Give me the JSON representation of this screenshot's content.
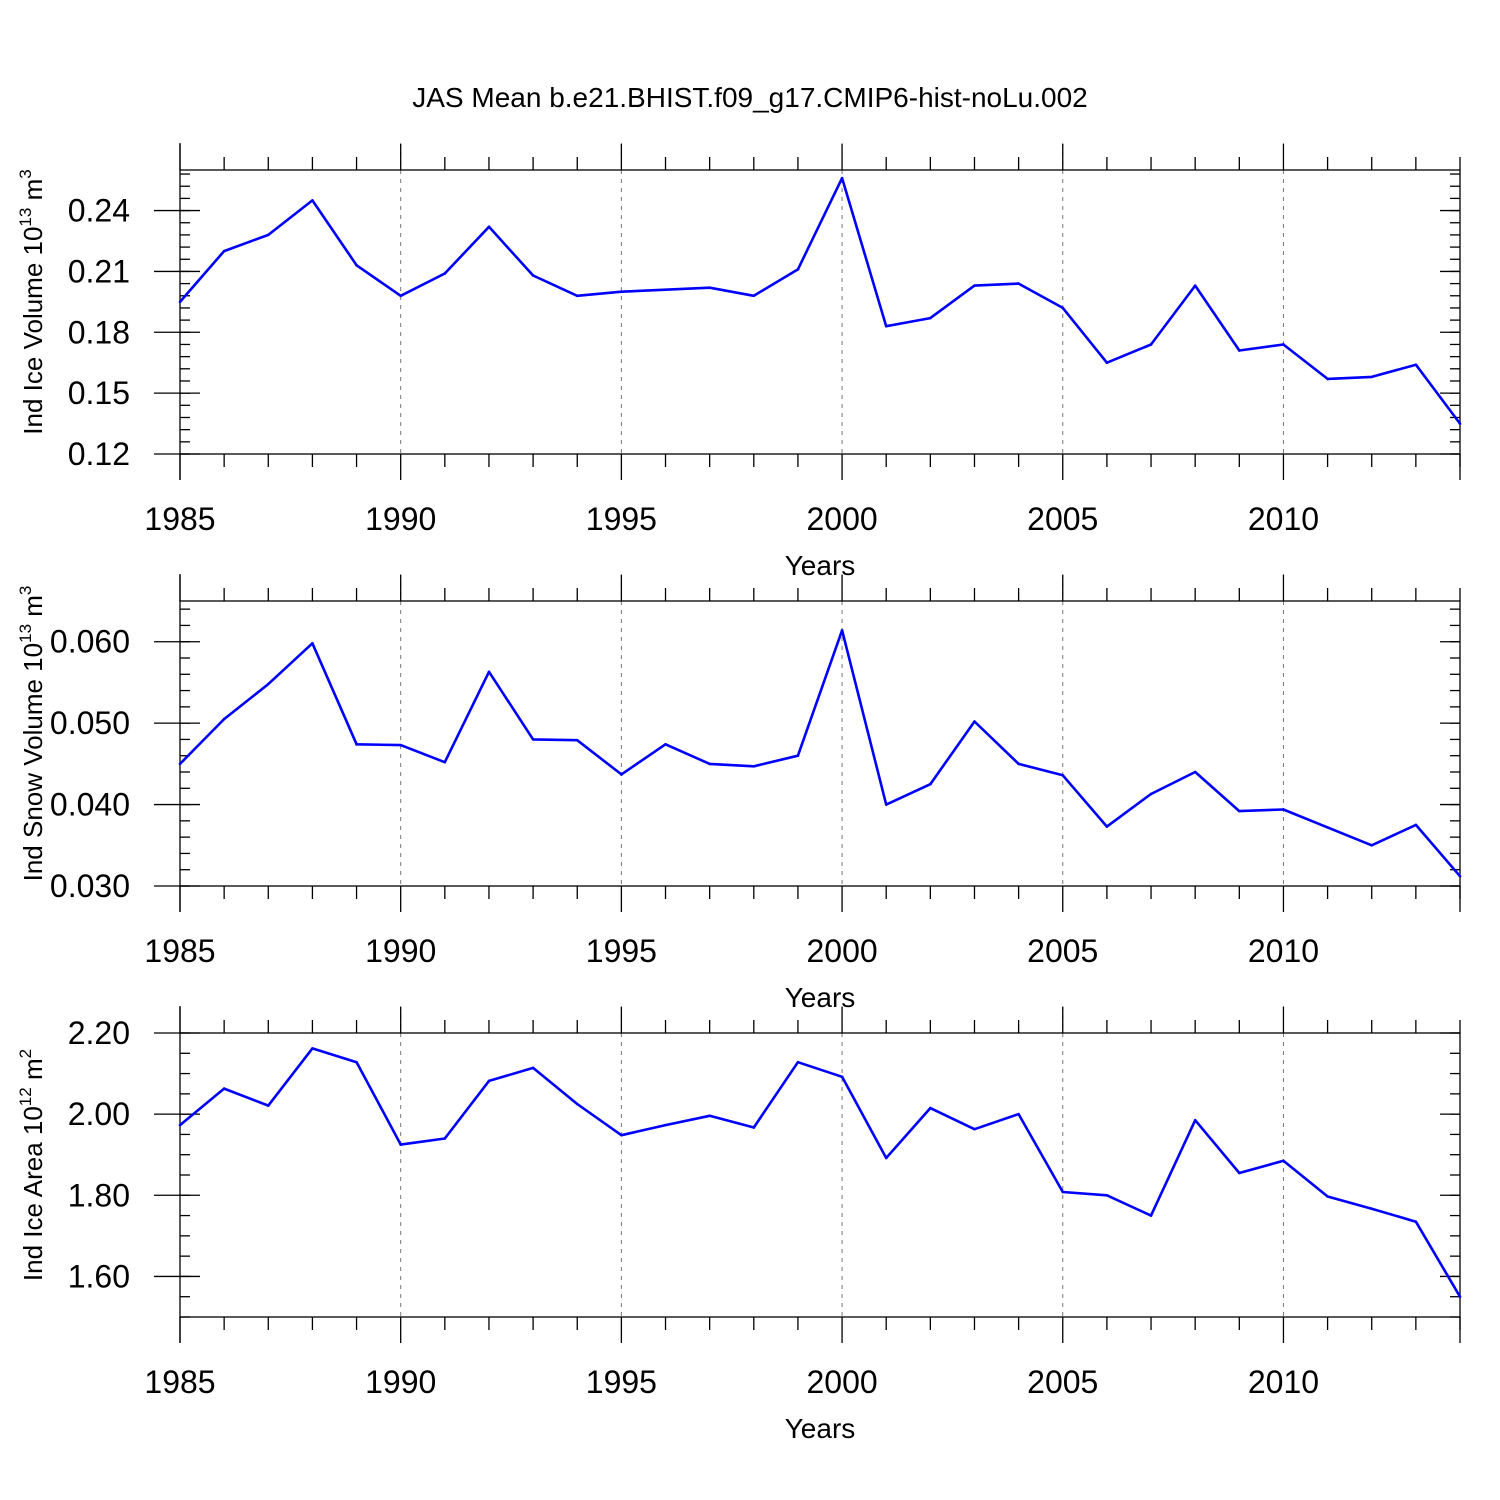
{
  "figure": {
    "title": "JAS Mean b.e21.BHIST.f09_g17.CMIP6-hist-noLu.002"
  },
  "chart_data": [
    {
      "type": "line",
      "title": "JAS Mean b.e21.BHIST.f09_g17.CMIP6-hist-noLu.002",
      "xlabel": "Years",
      "ylabel_main": "Ind Ice Volume 10",
      "ylabel_exp": "13",
      "ylabel_unit": " m",
      "ylabel_unit_exp": "3",
      "xlim": [
        1985,
        2014
      ],
      "ylim": [
        0.12,
        0.26
      ],
      "xticks": [
        1985,
        1990,
        1995,
        2000,
        2005,
        2010
      ],
      "xtick_labels": [
        "1985",
        "1990",
        "1995",
        "2000",
        "2005",
        "2010"
      ],
      "yticks": [
        0.12,
        0.15,
        0.18,
        0.21,
        0.24
      ],
      "ytick_labels": [
        "0.12",
        "0.15",
        "0.18",
        "0.21",
        "0.24"
      ],
      "ytick_minor_step": 0.006,
      "line_color": "#0000ff",
      "grid": "dashed vertical at major x ticks",
      "series": [
        {
          "name": "Ind Ice Volume",
          "x": [
            1985,
            1986,
            1987,
            1988,
            1989,
            1990,
            1991,
            1992,
            1993,
            1994,
            1995,
            1996,
            1997,
            1998,
            1999,
            2000,
            2001,
            2002,
            2003,
            2004,
            2005,
            2006,
            2007,
            2008,
            2009,
            2010,
            2011,
            2012,
            2013,
            2014
          ],
          "values": [
            0.195,
            0.22,
            0.228,
            0.245,
            0.213,
            0.198,
            0.209,
            0.232,
            0.208,
            0.198,
            0.2,
            0.201,
            0.202,
            0.198,
            0.211,
            0.256,
            0.183,
            0.187,
            0.203,
            0.204,
            0.192,
            0.165,
            0.174,
            0.203,
            0.171,
            0.174,
            0.157,
            0.158,
            0.164,
            0.135
          ]
        }
      ]
    },
    {
      "type": "line",
      "xlabel": "Years",
      "ylabel_main": "Ind Snow Volume 10",
      "ylabel_exp": "13",
      "ylabel_unit": " m",
      "ylabel_unit_exp": "3",
      "xlim": [
        1985,
        2014
      ],
      "ylim": [
        0.03,
        0.065
      ],
      "xticks": [
        1985,
        1990,
        1995,
        2000,
        2005,
        2010
      ],
      "xtick_labels": [
        "1985",
        "1990",
        "1995",
        "2000",
        "2005",
        "2010"
      ],
      "yticks": [
        0.03,
        0.04,
        0.05,
        0.06
      ],
      "ytick_labels": [
        "0.030",
        "0.040",
        "0.050",
        "0.060"
      ],
      "ytick_minor_step": 0.002,
      "line_color": "#0000ff",
      "grid": "dashed vertical at major x ticks",
      "series": [
        {
          "name": "Ind Snow Volume",
          "x": [
            1985,
            1986,
            1987,
            1988,
            1989,
            1990,
            1991,
            1992,
            1993,
            1994,
            1995,
            1996,
            1997,
            1998,
            1999,
            2000,
            2001,
            2002,
            2003,
            2004,
            2005,
            2006,
            2007,
            2008,
            2009,
            2010,
            2011,
            2012,
            2013,
            2014
          ],
          "values": [
            0.045,
            0.0505,
            0.0548,
            0.0598,
            0.0474,
            0.0473,
            0.0452,
            0.0563,
            0.048,
            0.0479,
            0.0437,
            0.0474,
            0.045,
            0.0447,
            0.046,
            0.0614,
            0.04,
            0.0425,
            0.0502,
            0.045,
            0.0436,
            0.0373,
            0.0413,
            0.044,
            0.0392,
            0.0394,
            0.0372,
            0.035,
            0.0375,
            0.0312
          ]
        }
      ]
    },
    {
      "type": "line",
      "xlabel": "Years",
      "ylabel_main": "Ind Ice Area 10",
      "ylabel_exp": "12",
      "ylabel_unit": " m",
      "ylabel_unit_exp": "2",
      "xlim": [
        1985,
        2014
      ],
      "ylim": [
        1.5,
        2.2
      ],
      "xticks": [
        1985,
        1990,
        1995,
        2000,
        2005,
        2010
      ],
      "xtick_labels": [
        "1985",
        "1990",
        "1995",
        "2000",
        "2005",
        "2010"
      ],
      "yticks": [
        1.6,
        1.8,
        2.0,
        2.2
      ],
      "ytick_labels": [
        "1.60",
        "1.80",
        "2.00",
        "2.20"
      ],
      "ytick_minor_step": 0.05,
      "line_color": "#0000ff",
      "grid": "dashed vertical at major x ticks",
      "series": [
        {
          "name": "Ind Ice Area",
          "x": [
            1985,
            1986,
            1987,
            1988,
            1989,
            1990,
            1991,
            1992,
            1993,
            1994,
            1995,
            1996,
            1997,
            1998,
            1999,
            2000,
            2001,
            2002,
            2003,
            2004,
            2005,
            2006,
            2007,
            2008,
            2009,
            2010,
            2011,
            2012,
            2013,
            2014
          ],
          "values": [
            1.973,
            2.063,
            2.021,
            2.162,
            2.128,
            1.925,
            1.94,
            2.082,
            2.114,
            2.025,
            1.948,
            1.973,
            1.996,
            1.967,
            2.128,
            2.092,
            1.892,
            2.015,
            1.963,
            2.0,
            1.808,
            1.8,
            1.75,
            1.985,
            1.855,
            1.885,
            1.797,
            1.767,
            1.735,
            1.55
          ]
        }
      ]
    }
  ]
}
